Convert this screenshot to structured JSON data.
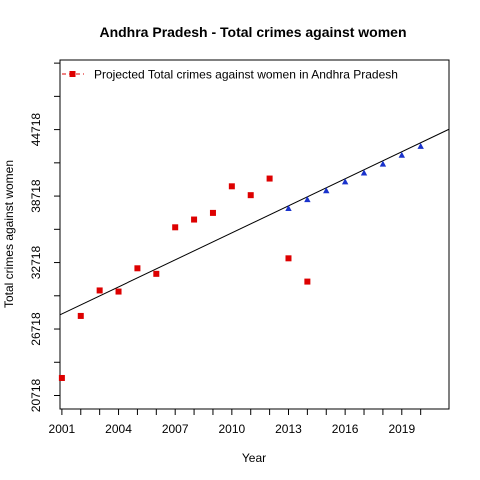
{
  "chart_data": {
    "type": "scatter",
    "title": "Andhra Pradesh  -  Total crimes against women",
    "xlabel": "Year",
    "ylabel": "Total crimes against women",
    "xlim": [
      2000.9,
      2021.5
    ],
    "ylim": [
      19500,
      51000
    ],
    "x_ticks": [
      2001,
      2004,
      2007,
      2010,
      2013,
      2016,
      2019
    ],
    "y_ticks": [
      20718,
      26718,
      32718,
      38718,
      44718
    ],
    "legend": {
      "position": "top-left",
      "label": "Projected  Total crimes against women  in  Andhra Pradesh"
    },
    "colors": {
      "actual": "#dd0000",
      "projected": "#1a33cc",
      "trend": "#000000"
    },
    "series": [
      {
        "marker": "square",
        "x": [
          2001,
          2002,
          2003,
          2004,
          2005,
          2006,
          2007,
          2008,
          2009,
          2010,
          2011,
          2012,
          2013,
          2014
        ],
        "y": [
          22300,
          27900,
          30200,
          30100,
          32200,
          31700,
          35900,
          36600,
          37200,
          39600,
          38800,
          40300,
          33100,
          31000
        ]
      },
      {
        "name": "Projected  Total crimes against women  in  Andhra Pradesh",
        "marker": "triangle",
        "x": [
          2013,
          2014,
          2015,
          2016,
          2017,
          2018,
          2019,
          2020
        ],
        "y": [
          37600,
          38400,
          39200,
          40000,
          40800,
          41600,
          42400,
          43200
        ]
      }
    ],
    "trend_line": {
      "x": [
        2000.9,
        2021.5
      ],
      "y": [
        28000,
        44750
      ]
    }
  }
}
